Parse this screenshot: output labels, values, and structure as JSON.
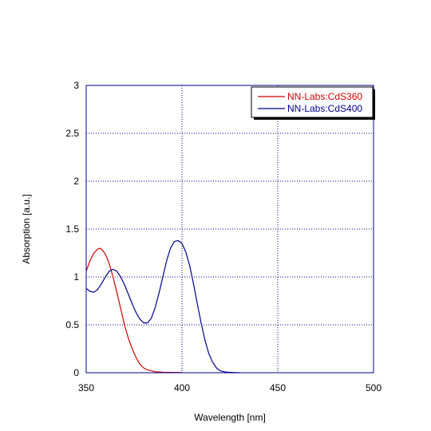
{
  "chart_data": {
    "type": "line",
    "title": "",
    "xlabel": "Wavelength [nm]",
    "ylabel": "Absorption [a.u.]",
    "xlim": [
      350,
      500
    ],
    "ylim": [
      0,
      3
    ],
    "x_ticks": [
      350,
      400,
      450,
      500
    ],
    "y_ticks": [
      0,
      0.5,
      1,
      1.5,
      2,
      2.5,
      3
    ],
    "x_tick_labels": [
      "350",
      "400",
      "450",
      "500"
    ],
    "y_tick_labels": [
      "0",
      "0.5",
      "1",
      "1.5",
      "2",
      "2.5",
      "3"
    ],
    "grid": true,
    "legend_position": "top-right",
    "frame_color": "#00008b",
    "grid_color": "#00008b",
    "series": [
      {
        "name": "NN-Labs:CdS360",
        "color": "#cc0000",
        "x": [
          350,
          352,
          354,
          356,
          357,
          358,
          360,
          362,
          364,
          366,
          368,
          370,
          372,
          374,
          376,
          378,
          380,
          382,
          384,
          386,
          388,
          390,
          395,
          400
        ],
        "y": [
          1.06,
          1.17,
          1.25,
          1.29,
          1.3,
          1.29,
          1.24,
          1.14,
          1.0,
          0.84,
          0.67,
          0.5,
          0.36,
          0.25,
          0.16,
          0.09,
          0.05,
          0.03,
          0.02,
          0.01,
          0.008,
          0.005,
          0.003,
          0.002
        ]
      },
      {
        "name": "NN-Labs:CdS400",
        "color": "#00008b",
        "x": [
          350,
          352,
          354,
          356,
          358,
          360,
          362,
          364,
          366,
          368,
          370,
          372,
          374,
          376,
          378,
          380,
          382,
          384,
          386,
          388,
          390,
          392,
          394,
          396,
          398,
          400,
          402,
          404,
          406,
          408,
          410,
          412,
          414,
          416,
          418,
          420,
          422,
          424,
          426,
          430
        ],
        "y": [
          0.88,
          0.85,
          0.84,
          0.87,
          0.93,
          1.0,
          1.06,
          1.08,
          1.06,
          1.0,
          0.92,
          0.82,
          0.72,
          0.63,
          0.56,
          0.52,
          0.52,
          0.57,
          0.68,
          0.83,
          1.0,
          1.17,
          1.3,
          1.37,
          1.38,
          1.35,
          1.26,
          1.12,
          0.93,
          0.72,
          0.52,
          0.34,
          0.2,
          0.11,
          0.05,
          0.02,
          0.01,
          0.005,
          0.003,
          0.0
        ]
      }
    ]
  }
}
